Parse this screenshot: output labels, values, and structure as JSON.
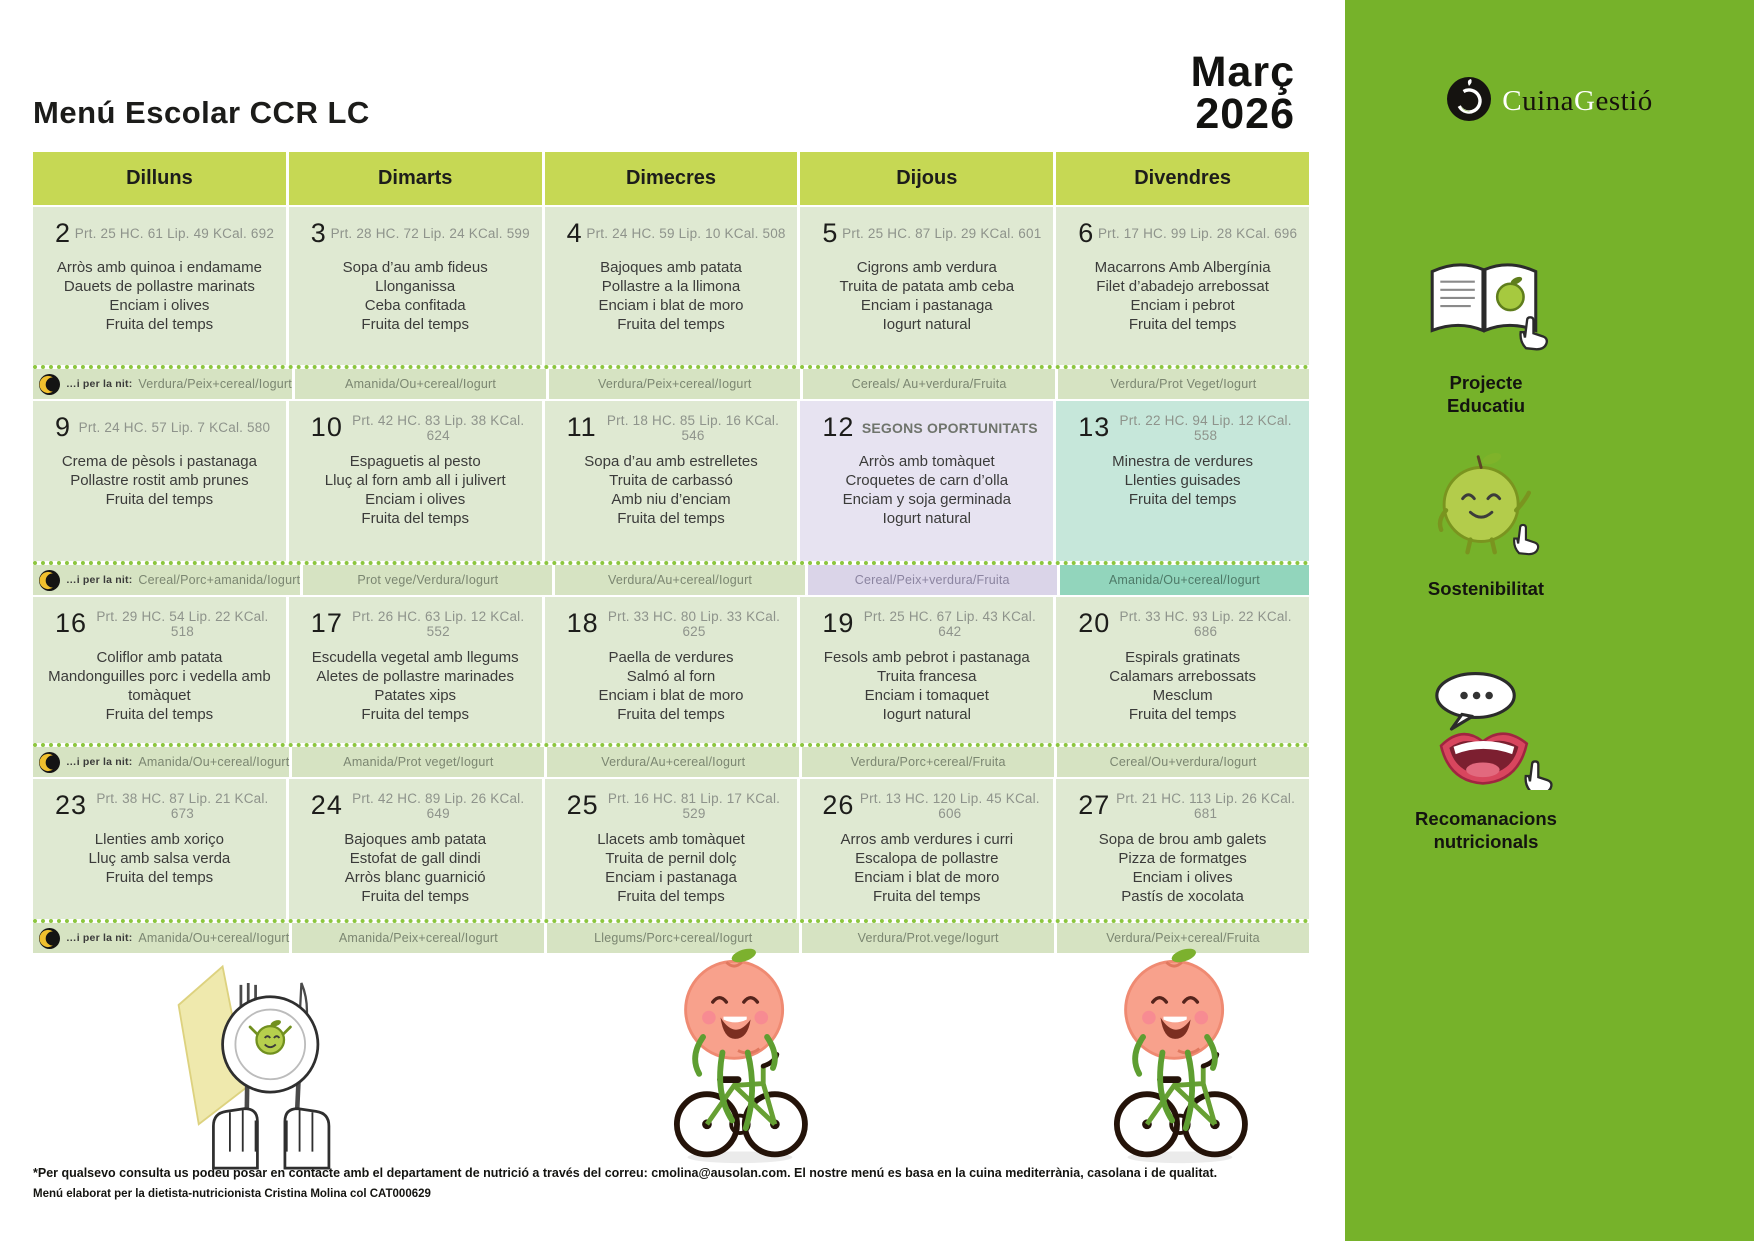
{
  "title": "Menú Escolar CCR LC",
  "month": "Març",
  "year": "2026",
  "brand": {
    "c": "C",
    "uina": "uina",
    "g": "G",
    "estio": "estió",
    "icon": "apple-circle-logo-icon"
  },
  "sidebar": {
    "items": [
      {
        "label": "Projecte Educatiu",
        "icon": "book-icon"
      },
      {
        "label": "Sostenibilitat",
        "icon": "apple-character-icon"
      },
      {
        "label": "Recomanacions nutricionals",
        "icon": "mouth-speech-icon"
      }
    ]
  },
  "calendar": {
    "day_headers": [
      "Dilluns",
      "Dimarts",
      "Dimecres",
      "Dijous",
      "Divendres"
    ],
    "night_label": "…i per la nit:",
    "night_icon": "moon-icon",
    "weeks": [
      {
        "days": [
          {
            "num": "2",
            "stats": "Prt. 25 HC. 61 Lip. 49 KCal. 692",
            "items": [
              "Arròs amb quinoa i endamame",
              "Dauets de pollastre marinats",
              "Enciam i olives",
              "Fruita del temps"
            ]
          },
          {
            "num": "3",
            "stats": "Prt. 28 HC. 72 Lip. 24 KCal. 599",
            "items": [
              "Sopa d’au amb fideus",
              "Llonganissa",
              "Ceba confitada",
              "Fruita del temps"
            ]
          },
          {
            "num": "4",
            "stats": "Prt. 24 HC. 59 Lip. 10 KCal. 508",
            "items": [
              "Bajoques amb patata",
              "Pollastre a la llimona",
              "Enciam i blat de moro",
              "Fruita del temps"
            ]
          },
          {
            "num": "5",
            "stats": "Prt. 25 HC. 87 Lip. 29 KCal. 601",
            "items": [
              "Cigrons amb verdura",
              "Truita de patata amb ceba",
              "Enciam i pastanaga",
              "Iogurt natural"
            ]
          },
          {
            "num": "6",
            "stats": "Prt. 17 HC. 99 Lip. 28 KCal. 696",
            "items": [
              "Macarrons Amb Albergínia",
              "Filet d’abadejo arrebossat",
              "Enciam i pebrot",
              "Fruita del temps"
            ]
          }
        ],
        "night": [
          "Verdura/Peix+cereal/Iogurt",
          "Amanida/Ou+cereal/Iogurt",
          "Verdura/Peix+cereal/Iogurt",
          "Cereals/ Au+verdura/Fruita",
          "Verdura/Prot Veget/Iogurt"
        ]
      },
      {
        "days": [
          {
            "num": "9",
            "stats": "Prt. 24 HC. 57 Lip. 7 KCal. 580",
            "items": [
              "Crema de pèsols i pastanaga",
              "Pollastre rostit amb prunes",
              "Fruita del temps"
            ]
          },
          {
            "num": "10",
            "stats": "Prt. 42 HC. 83 Lip. 38 KCal. 624",
            "items": [
              "Espaguetis al pesto",
              "Lluç al forn amb all i julivert",
              "Enciam i olives",
              "Fruita del temps"
            ]
          },
          {
            "num": "11",
            "stats": "Prt. 18 HC. 85 Lip. 16 KCal. 546",
            "items": [
              "Sopa d’au amb estrelletes",
              "Truita de carbassó",
              "Amb niu d’enciam",
              "Fruita del temps"
            ]
          },
          {
            "num": "12",
            "special": "SEGONS OPORTUNITATS",
            "variant": "purple",
            "items": [
              "Arròs amb tomàquet",
              "Croquetes de carn d’olla",
              "Enciam y soja germinada",
              "Iogurt natural"
            ]
          },
          {
            "num": "13",
            "stats": "Prt. 22 HC. 94 Lip. 12 KCal. 558",
            "variant": "teal",
            "items": [
              "Minestra de verdures",
              "Llenties guisades",
              "Fruita del temps"
            ]
          }
        ],
        "night": [
          "Cereal/Porc+amanida/Iogurt",
          "Prot vege/Verdura/Iogurt",
          "Verdura/Au+cereal/Iogurt",
          "Cereal/Peix+verdura/Fruita",
          "Amanida/Ou+cereal/Iogurt"
        ],
        "night_variants": [
          "green",
          "green",
          "green",
          "purple",
          "teal"
        ]
      },
      {
        "days": [
          {
            "num": "16",
            "stats": "Prt. 29 HC. 54 Lip. 22 KCal. 518",
            "items": [
              "Coliflor amb patata",
              "Mandonguilles porc i vedella amb tomàquet",
              "Fruita del temps"
            ]
          },
          {
            "num": "17",
            "stats": "Prt. 26 HC. 63 Lip. 12 KCal. 552",
            "items": [
              "Escudella vegetal amb llegums",
              "Aletes de pollastre marinades",
              "Patates xips",
              "Fruita del temps"
            ]
          },
          {
            "num": "18",
            "stats": "Prt. 33 HC. 80 Lip. 33 KCal. 625",
            "items": [
              "Paella de verdures",
              "Salmó al forn",
              "Enciam i blat de moro",
              "Fruita del temps"
            ]
          },
          {
            "num": "19",
            "stats": "Prt. 25 HC. 67 Lip. 43 KCal. 642",
            "items": [
              "Fesols amb pebrot i pastanaga",
              "Truita francesa",
              "Enciam i tomaquet",
              "Iogurt natural"
            ]
          },
          {
            "num": "20",
            "stats": "Prt. 33 HC. 93 Lip. 22 KCal. 686",
            "items": [
              "Espirals gratinats",
              "Calamars arrebossats",
              "Mesclum",
              "Fruita del temps"
            ]
          }
        ],
        "night": [
          "Amanida/Ou+cereal/Iogurt",
          "Amanida/Prot veget/Iogurt",
          "Verdura/Au+cereal/Iogurt",
          "Verdura/Porc+cereal/Fruita",
          "Cereal/Ou+verdura/Iogurt"
        ]
      },
      {
        "days": [
          {
            "num": "23",
            "stats": "Prt. 38 HC. 87 Lip. 21 KCal. 673",
            "items": [
              "Llenties amb xoriço",
              "Lluç amb salsa verda",
              "Fruita del temps"
            ]
          },
          {
            "num": "24",
            "stats": "Prt. 42 HC. 89 Lip. 26 KCal. 649",
            "items": [
              "Bajoques amb patata",
              "Estofat de gall dindi",
              "Arròs blanc guarnició",
              "Fruita del temps"
            ]
          },
          {
            "num": "25",
            "stats": "Prt. 16 HC. 81 Lip. 17 KCal. 529",
            "items": [
              "Llacets amb tomàquet",
              "Truita de pernil dolç",
              "Enciam i pastanaga",
              "Fruita del temps"
            ]
          },
          {
            "num": "26",
            "stats": "Prt. 13 HC. 120 Lip. 45 KCal. 606",
            "items": [
              "Arros amb verdures i curri",
              "Escalopa de pollastre",
              "Enciam i blat de moro",
              "Fruita del temps"
            ]
          },
          {
            "num": "27",
            "stats": "Prt. 21 HC. 113 Lip. 26 KCal. 681",
            "items": [
              "Sopa de brou amb galets",
              "Pizza de formatges",
              "Enciam i olives",
              "Pastís de xocolata"
            ]
          }
        ],
        "night": [
          "Amanida/Ou+cereal/Iogurt",
          "Amanida/Peix+cereal/Iogurt",
          "Llegums/Porc+cereal/Iogurt",
          "Verdura/Prot.vege/Iogurt",
          "Verdura/Peix+cereal/Fruita"
        ]
      }
    ]
  },
  "footer": {
    "line1": "*Per qualsevo consulta us podeu posar en contacte amb el departament de nutrició a través del correu: cmolina@ausolan.com. El nostre menú es basa en la cuina mediterrània, casolana i de qualitat.",
    "line2": "Menú elaborat per la dietista-nutricionista Cristina Molina col CAT000629"
  },
  "illustrations": [
    "plate-hands-illustration",
    "peach-bicycle-illustration",
    "peach-bicycle-illustration"
  ],
  "colors": {
    "sidebar_green": "#76b22a",
    "header_cell": "#c6d854",
    "cell_green": "#dfe9d2",
    "cell_purple": "#e7e3f1",
    "cell_teal": "#c6e7da",
    "night_green": "#d6e3c2",
    "night_purple": "#dad4e8",
    "night_teal": "#92d5bc",
    "dotted_line": "#8dc63f",
    "stats_gray": "#8e938b",
    "moon_yellow": "#f0c02e"
  }
}
